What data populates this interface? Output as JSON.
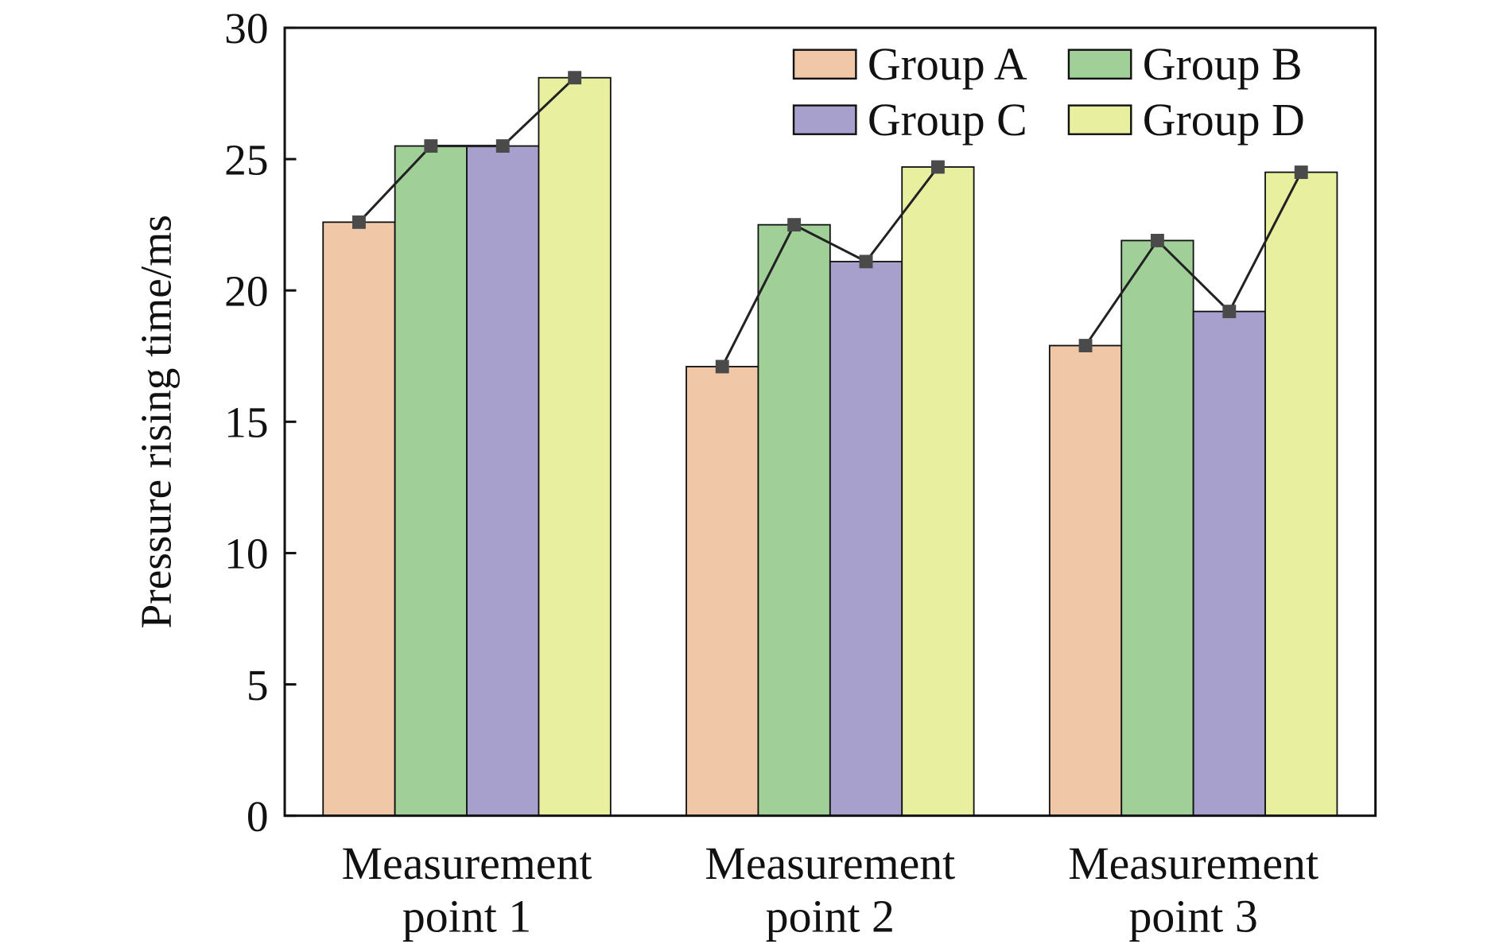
{
  "chart_data": {
    "type": "bar",
    "title": "",
    "xlabel": "",
    "ylabel": "Pressure rising time/ms",
    "ylim": [
      0,
      30
    ],
    "yticks": [
      "0",
      "5",
      "10",
      "15",
      "20",
      "25",
      "30"
    ],
    "categories": [
      [
        "Measurement",
        "point 1"
      ],
      [
        "Measurement",
        "point 2"
      ],
      [
        "Measurement",
        "point 3"
      ]
    ],
    "series": [
      {
        "name": "Group A",
        "color": "#f0c8a8",
        "values": [
          22.6,
          17.1,
          17.9
        ]
      },
      {
        "name": "Group B",
        "color": "#a0d098",
        "values": [
          25.5,
          22.5,
          21.9
        ]
      },
      {
        "name": "Group C",
        "color": "#a8a0cc",
        "values": [
          25.5,
          21.1,
          19.2
        ]
      },
      {
        "name": "Group D",
        "color": "#e8f0a0",
        "values": [
          28.1,
          24.7,
          24.5
        ]
      }
    ],
    "overlay_line": {
      "color": "#222222",
      "marker": "square",
      "marker_color": "#4a4a4a"
    },
    "legend_position": "top-right",
    "grid": false
  }
}
